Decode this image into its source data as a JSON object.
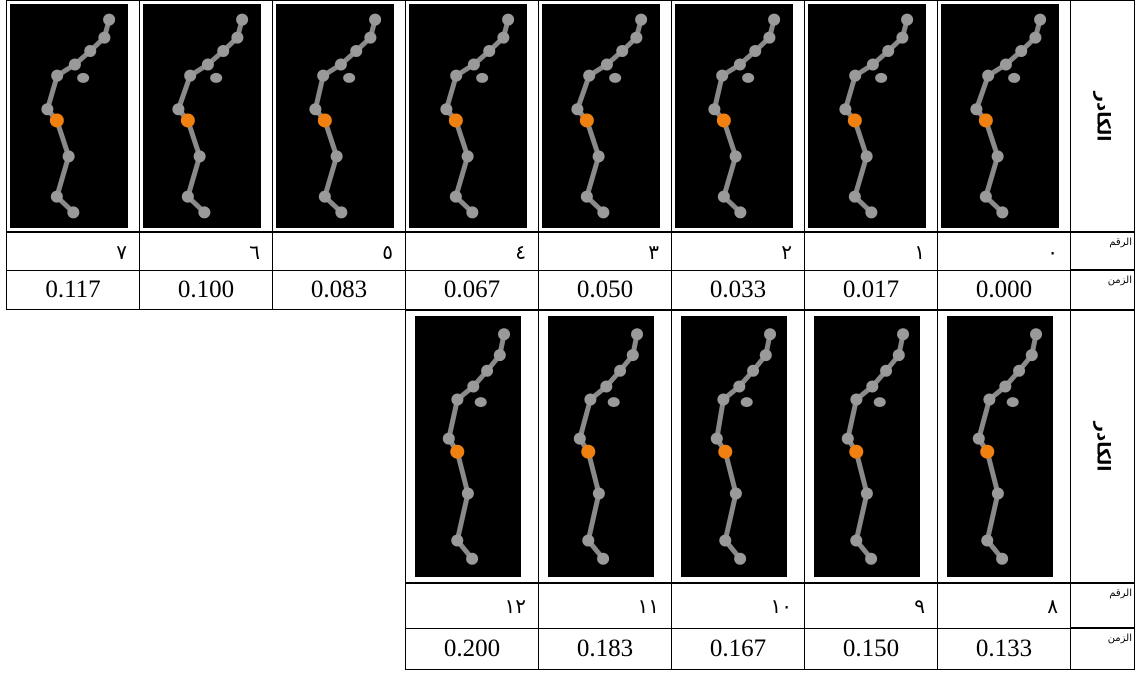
{
  "tables": [
    {
      "row_labels": {
        "frame": "الكادر",
        "number": "الرقم",
        "time": "الزمن"
      },
      "columns": [
        {
          "number": "٠",
          "time": "0.000"
        },
        {
          "number": "١",
          "time": "0.017"
        },
        {
          "number": "٢",
          "time": "0.033"
        },
        {
          "number": "٣",
          "time": "0.050"
        },
        {
          "number": "٤",
          "time": "0.067"
        },
        {
          "number": "٥",
          "time": "0.083"
        },
        {
          "number": "٦",
          "time": "0.100"
        },
        {
          "number": "٧",
          "time": "0.117"
        }
      ]
    },
    {
      "row_labels": {
        "frame": "الكادر",
        "number": "الرقم",
        "time": "الزمن"
      },
      "columns": [
        {
          "number": "٨",
          "time": "0.133"
        },
        {
          "number": "٩",
          "time": "0.150"
        },
        {
          "number": "١٠",
          "time": "0.167"
        },
        {
          "number": "١١",
          "time": "0.183"
        },
        {
          "number": "١٢",
          "time": "0.200"
        }
      ]
    }
  ]
}
